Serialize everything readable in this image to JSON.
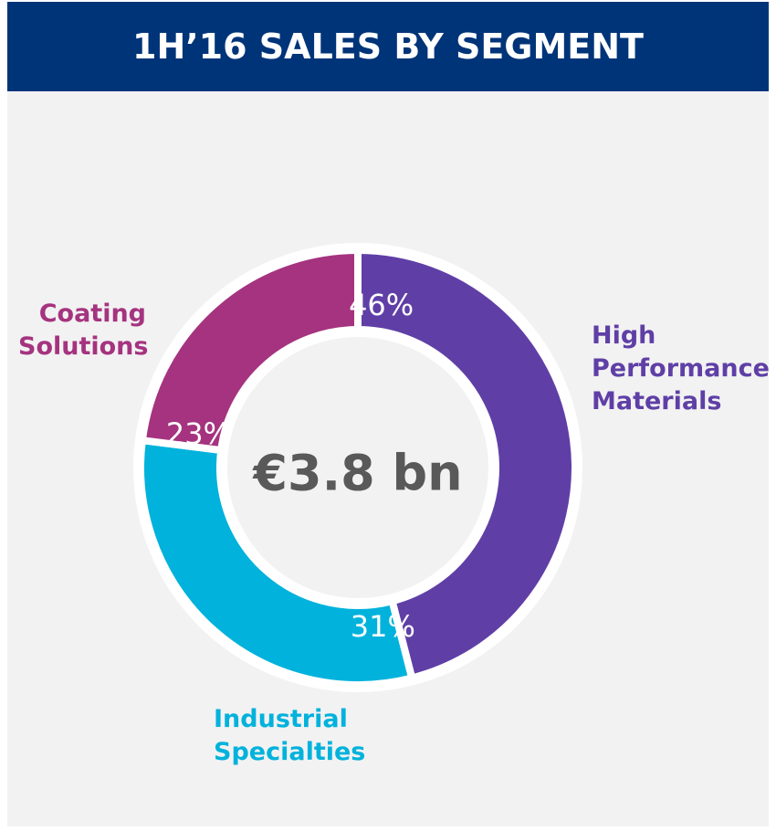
{
  "chart_data": {
    "type": "donut",
    "title": "1H’16 SALES BY SEGMENT",
    "center_label": "€3.8 bn",
    "categories": [
      "High Performance Materials",
      "Industrial Specialties",
      "Coating Solutions"
    ],
    "values": [
      46,
      31,
      23
    ],
    "value_labels": [
      "46%",
      "31%",
      "23%"
    ],
    "colors": [
      "#5f3fa6",
      "#00b2dc",
      "#a5337f"
    ]
  }
}
